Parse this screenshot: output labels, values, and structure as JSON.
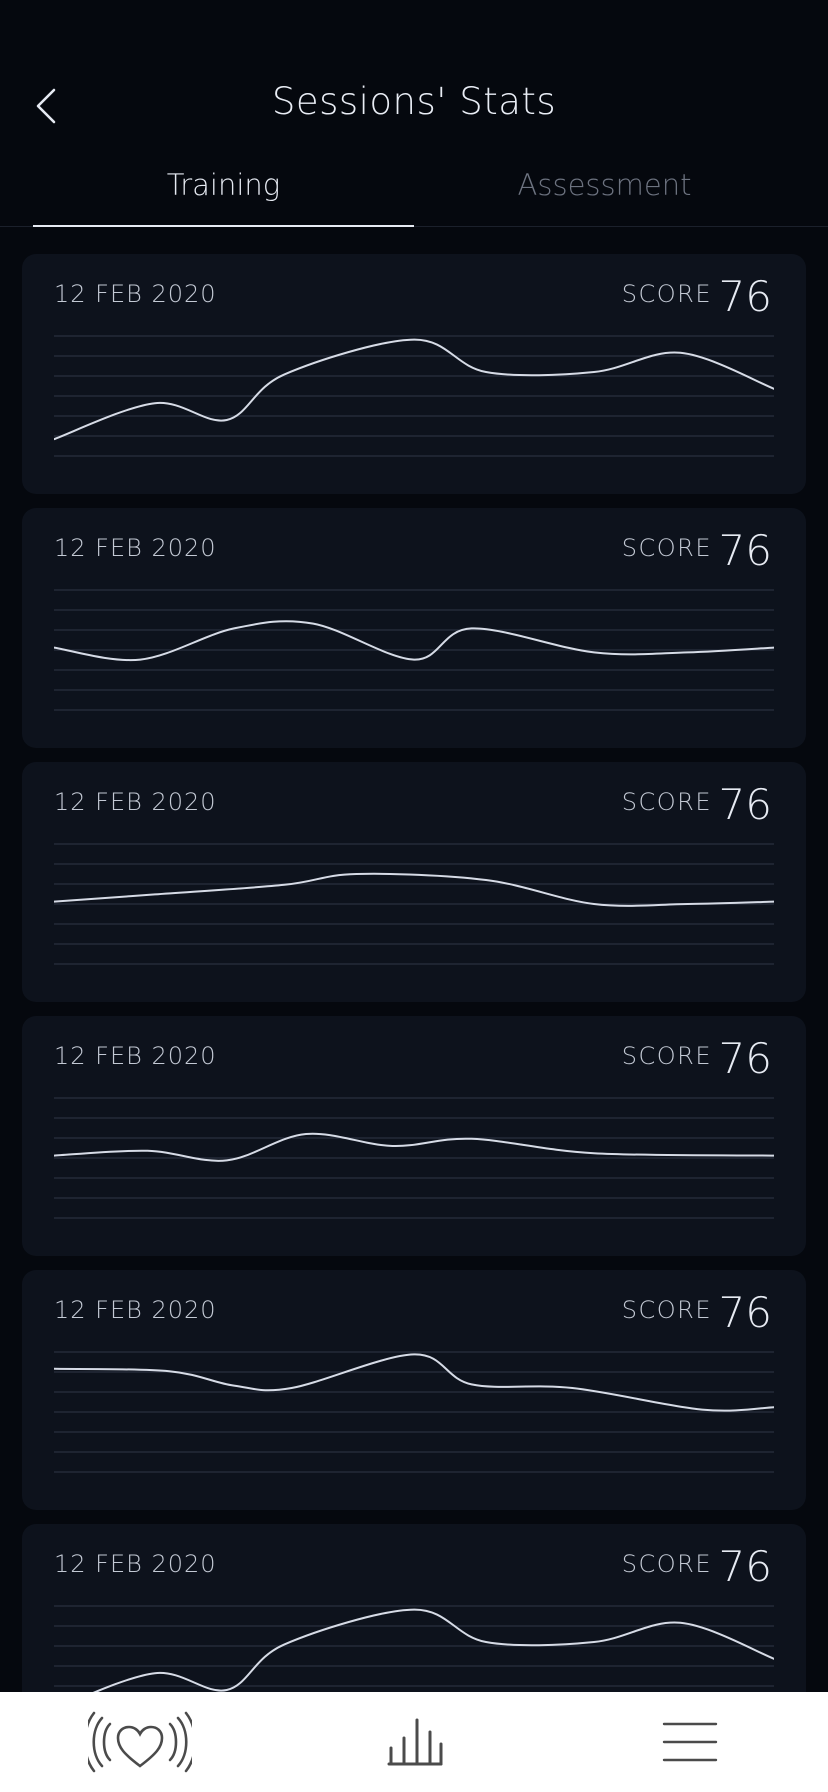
{
  "header": {
    "title": "Sessions' Stats",
    "back_icon": "chevron-left-icon"
  },
  "tabs": [
    {
      "label": "Training",
      "active": true
    },
    {
      "label": "Assessment",
      "active": false
    }
  ],
  "sessions": [
    {
      "date": "12 FEB 2020",
      "score_label": "SCORE",
      "score": "76",
      "chart_data": {
        "type": "line",
        "ylim": [
          0,
          100
        ],
        "grid": true,
        "x": [
          0,
          0.14,
          0.24,
          0.32,
          0.5,
          0.6,
          0.75,
          0.87,
          1.0
        ],
        "y": [
          14,
          44,
          30,
          68,
          97,
          70,
          70,
          86,
          56
        ]
      }
    },
    {
      "date": "12 FEB 2020",
      "score_label": "SCORE",
      "score": "76",
      "chart_data": {
        "type": "line",
        "ylim": [
          0,
          100
        ],
        "grid": true,
        "x": [
          0,
          0.12,
          0.25,
          0.36,
          0.5,
          0.58,
          0.75,
          0.88,
          1.0
        ],
        "y": [
          52,
          42,
          68,
          72,
          42,
          68,
          48,
          48,
          52
        ]
      }
    },
    {
      "date": "12 FEB 2020",
      "score_label": "SCORE",
      "score": "76",
      "chart_data": {
        "type": "line",
        "ylim": [
          0,
          100
        ],
        "grid": true,
        "x": [
          0,
          0.14,
          0.32,
          0.42,
          0.6,
          0.75,
          0.88,
          1.0
        ],
        "y": [
          52,
          58,
          66,
          75,
          70,
          50,
          50,
          52
        ]
      }
    },
    {
      "date": "12 FEB 2020",
      "score_label": "SCORE",
      "score": "76",
      "chart_data": {
        "type": "line",
        "ylim": [
          0,
          100
        ],
        "grid": true,
        "x": [
          0,
          0.13,
          0.24,
          0.35,
          0.47,
          0.58,
          0.75,
          1.0
        ],
        "y": [
          52,
          56,
          48,
          70,
          60,
          66,
          54,
          52
        ]
      }
    },
    {
      "date": "12 FEB 2020",
      "score_label": "SCORE",
      "score": "76",
      "chart_data": {
        "type": "line",
        "ylim": [
          0,
          100
        ],
        "grid": true,
        "x": [
          0,
          0.16,
          0.25,
          0.33,
          0.5,
          0.58,
          0.72,
          0.9,
          1.0
        ],
        "y": [
          86,
          84,
          72,
          70,
          98,
          73,
          70,
          52,
          54
        ]
      }
    },
    {
      "date": "12 FEB 2020",
      "score_label": "SCORE",
      "score": "76",
      "chart_data": {
        "type": "line",
        "ylim": [
          0,
          100
        ],
        "grid": true,
        "x": [
          0,
          0.14,
          0.24,
          0.32,
          0.5,
          0.6,
          0.75,
          0.87,
          1.0
        ],
        "y": [
          14,
          44,
          30,
          68,
          97,
          70,
          70,
          86,
          56
        ]
      }
    }
  ],
  "bottom_nav": [
    {
      "icon": "heart-pulse-icon",
      "active": false
    },
    {
      "icon": "bar-chart-icon",
      "active": true
    },
    {
      "icon": "menu-icon",
      "active": false
    }
  ],
  "colors": {
    "background": "#05080e",
    "card": "#0d121c",
    "line": "#d6dbe6",
    "grid": "#252b38",
    "tab_active": "#e6eaf2",
    "tab_inactive": "#6d7380",
    "bottom_bar": "#ffffff"
  }
}
